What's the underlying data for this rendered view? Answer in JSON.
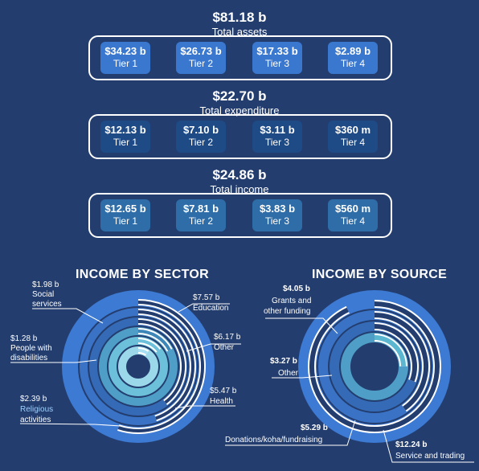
{
  "totals": [
    {
      "key": "assets",
      "value": "$81.18 b",
      "label": "Total assets",
      "tiers": [
        {
          "value": "$34.23 b",
          "label": "Tier 1"
        },
        {
          "value": "$26.73 b",
          "label": "Tier 2"
        },
        {
          "value": "$17.33 b",
          "label": "Tier 3"
        },
        {
          "value": "$2.89 b",
          "label": "Tier 4"
        }
      ]
    },
    {
      "key": "expenditure",
      "value": "$22.70 b",
      "label": "Total expenditure",
      "tiers": [
        {
          "value": "$12.13 b",
          "label": "Tier 1"
        },
        {
          "value": "$7.10 b",
          "label": "Tier 2"
        },
        {
          "value": "$3.11 b",
          "label": "Tier 3"
        },
        {
          "value": "$360 m",
          "label": "Tier 4"
        }
      ]
    },
    {
      "key": "income",
      "value": "$24.86 b",
      "label": "Total income",
      "tiers": [
        {
          "value": "$12.65 b",
          "label": "Tier 1"
        },
        {
          "value": "$7.81 b",
          "label": "Tier 2"
        },
        {
          "value": "$3.83 b",
          "label": "Tier 3"
        },
        {
          "value": "$560 m",
          "label": "Tier 4"
        }
      ]
    }
  ],
  "colors": {
    "background": "#233d6e",
    "ring_bg": "#3d7ad3",
    "ring_track": "#2c5a9c",
    "accent_light": "#a8dff2",
    "accent_mid": "#5bb6cf",
    "white": "#ffffff"
  },
  "chart_data": [
    {
      "type": "radial-bar",
      "title": "INCOME BY SECTOR",
      "unit": "$ b",
      "series": [
        {
          "label": "Education",
          "value_text": "$7.57 b",
          "value": 7.57
        },
        {
          "label": "Other",
          "value_text": "$6.17 b",
          "value": 6.17
        },
        {
          "label": "Health",
          "value_text": "$5.47 b",
          "value": 5.47
        },
        {
          "label": "Religious activities",
          "value_text": "$2.39 b",
          "value": 2.39
        },
        {
          "label": "Social services",
          "value_text": "$1.98 b",
          "value": 1.98
        },
        {
          "label": "People with disabilities",
          "value_text": "$1.28 b",
          "value": 1.28
        }
      ]
    },
    {
      "type": "radial-bar",
      "title": "INCOME BY SOURCE",
      "unit": "$ b",
      "series": [
        {
          "label": "Service and trading",
          "value_text": "$12.24 b",
          "value": 12.24
        },
        {
          "label": "Donations/koha/fundraising",
          "value_text": "$5.29 b",
          "value": 5.29
        },
        {
          "label": "Grants and other funding",
          "value_text": "$4.05 b",
          "value": 4.05
        },
        {
          "label": "Other",
          "value_text": "$3.27 b",
          "value": 3.27
        }
      ]
    }
  ]
}
